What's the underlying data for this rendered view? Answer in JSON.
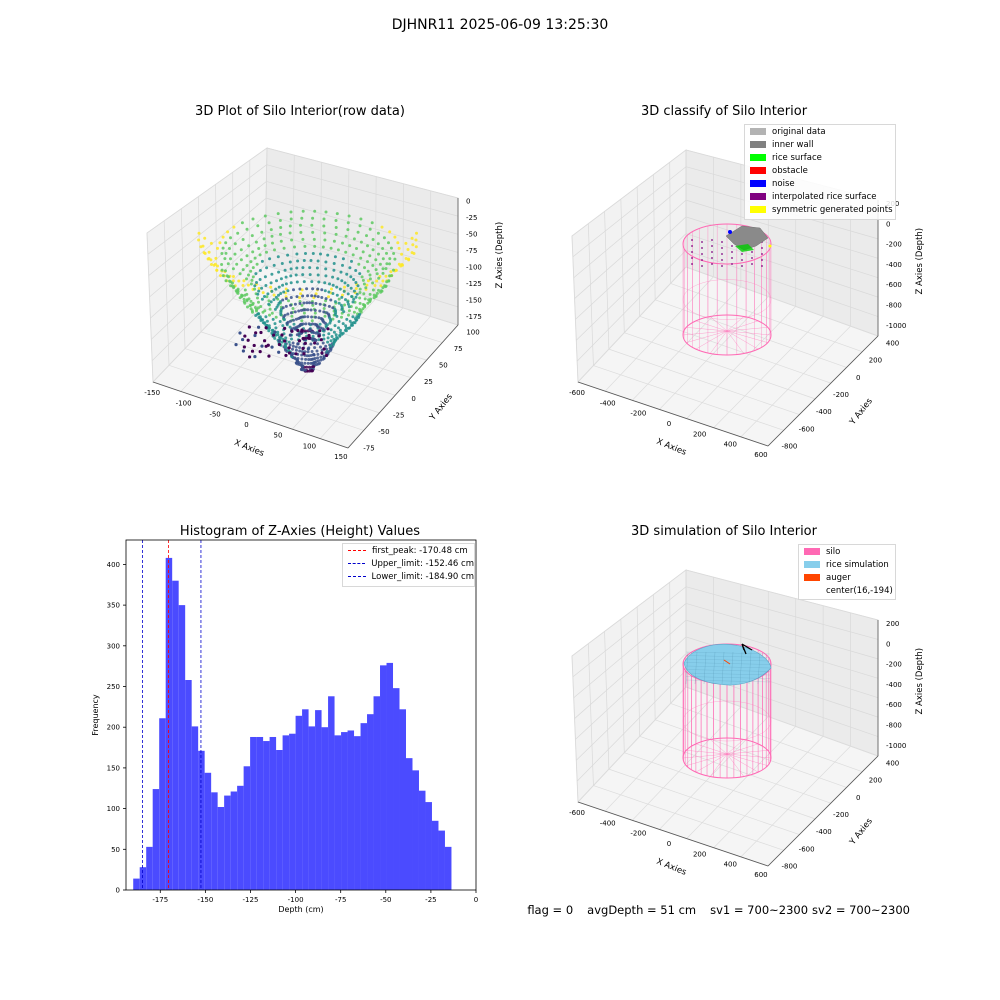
{
  "window": {
    "title": "DJHNR11 2025-06-09 13:25:30"
  },
  "colors": {
    "viridis": [
      "#440154",
      "#3b528b",
      "#21918c",
      "#5ec962",
      "#fde725"
    ],
    "silo": "#ff69b4",
    "rice_sim": "#87ceeb",
    "auger": "#ff4500",
    "hist_bar": "#4b4bff",
    "peak_line": "#ff0000",
    "limit_line": "#0000cc"
  },
  "panels": {
    "raw": {
      "title": "3D Plot of Silo Interior(row data)",
      "xlabel": "X Axies",
      "ylabel": "Y Axies",
      "zlabel": "Z Axies (Depth)",
      "xticks": [
        "-150",
        "-100",
        "-50",
        "0",
        "50",
        "100",
        "150"
      ],
      "yticks": [
        "-75",
        "-50",
        "-25",
        "0",
        "25",
        "50",
        "75",
        "100"
      ],
      "zticks": [
        "0",
        "-25",
        "-50",
        "-75",
        "-100",
        "-125",
        "-150",
        "-175"
      ],
      "colormap": "viridis"
    },
    "classify": {
      "title": "3D classify of Silo Interior",
      "xlabel": "X Axies",
      "ylabel": "Y Axies",
      "zlabel": "Z Axies (Depth)",
      "xticks": [
        "-600",
        "-400",
        "-200",
        "0",
        "200",
        "400",
        "600"
      ],
      "yticks": [
        "-800",
        "-600",
        "-400",
        "-200",
        "0",
        "200",
        "400"
      ],
      "zticks": [
        "200",
        "0",
        "-200",
        "-400",
        "-600",
        "-800",
        "-1000"
      ],
      "legend": [
        {
          "label": "original data",
          "color": "#b3b3b3"
        },
        {
          "label": "inner wall",
          "color": "#808080"
        },
        {
          "label": "rice surface",
          "color": "#00ff00"
        },
        {
          "label": "obstacle",
          "color": "#ff0000"
        },
        {
          "label": "noise",
          "color": "#0000ff"
        },
        {
          "label": "interpolated rice surface",
          "color": "#800080"
        },
        {
          "label": "symmetric generated points",
          "color": "#ffff00"
        }
      ]
    },
    "histogram": {
      "title": "Histogram of Z-Axies (Height) Values",
      "xlabel": "Depth (cm)",
      "ylabel": "Frequency",
      "legend": [
        {
          "label": "first_peak: -170.48 cm",
          "color": "#ff0000"
        },
        {
          "label": "Upper_limit: -152.46 cm",
          "color": "#0000cc"
        },
        {
          "label": "Lower_limit: -184.90 cm",
          "color": "#0000cc"
        }
      ]
    },
    "simulation": {
      "title": "3D simulation of Silo Interior",
      "xlabel": "X Axies",
      "ylabel": "Y Axies",
      "zlabel": "Z Axies (Depth)",
      "xticks": [
        "-600",
        "-400",
        "-200",
        "0",
        "200",
        "400",
        "600"
      ],
      "yticks": [
        "-800",
        "-600",
        "-400",
        "-200",
        "0",
        "200",
        "400"
      ],
      "zticks": [
        "200",
        "0",
        "-200",
        "-400",
        "-600",
        "-800",
        "-1000"
      ],
      "legend": [
        {
          "label": "silo",
          "color": "#ff69b4"
        },
        {
          "label": "rice simulation",
          "color": "#87ceeb"
        },
        {
          "label": "auger",
          "color": "#ff4500"
        },
        {
          "label": "center(16,-194)",
          "color": ""
        }
      ]
    }
  },
  "status": {
    "flag": "flag = 0",
    "avg_depth": "avgDepth = 51 cm",
    "sv1": "sv1 = 700~2300",
    "sv2": "sv2 = 700~2300"
  },
  "chart_data": [
    {
      "type": "scatter",
      "title": "3D Plot of Silo Interior(row data)",
      "xlabel": "X Axies",
      "ylabel": "Y Axies",
      "zlabel": "Z Axies (Depth)",
      "xlim": [
        -150,
        150
      ],
      "ylim": [
        -75,
        110
      ],
      "zlim": [
        -190,
        0
      ],
      "grid": true
    },
    {
      "type": "scatter",
      "title": "3D classify of Silo Interior",
      "xlabel": "X Axies",
      "ylabel": "Y Axies",
      "zlabel": "Z Axies (Depth)",
      "xlim": [
        -600,
        600
      ],
      "ylim": [
        -800,
        400
      ],
      "zlim": [
        -1000,
        200
      ],
      "grid": true,
      "legend_position": "top-right"
    },
    {
      "type": "bar",
      "title": "Histogram of Z-Axies (Height) Values",
      "xlabel": "Depth (cm)",
      "ylabel": "Frequency",
      "xlim": [
        -194,
        0
      ],
      "ylim": [
        0,
        430
      ],
      "bin_start": -190.0,
      "bin_width": 3.6,
      "values": [
        14,
        28,
        53,
        124,
        211,
        408,
        380,
        350,
        258,
        201,
        171,
        144,
        120,
        102,
        116,
        121,
        128,
        152,
        188,
        188,
        183,
        188,
        172,
        190,
        192,
        214,
        222,
        201,
        221,
        200,
        238,
        190,
        194,
        196,
        189,
        205,
        216,
        238,
        276,
        279,
        248,
        222,
        162,
        147,
        122,
        108,
        85,
        73,
        53
      ],
      "xticks": [
        -175,
        -150,
        -125,
        -100,
        -75,
        -50,
        -25,
        0
      ],
      "yticks": [
        0,
        50,
        100,
        150,
        200,
        250,
        300,
        350,
        400
      ],
      "vlines": [
        {
          "label": "first_peak: -170.48 cm",
          "x": -170.48,
          "style": "dashed",
          "color": "#ff0000"
        },
        {
          "label": "Upper_limit: -152.46 cm",
          "x": -152.46,
          "style": "dashed",
          "color": "#0000cc"
        },
        {
          "label": "Lower_limit: -184.90 cm",
          "x": -184.9,
          "style": "dashed",
          "color": "#0000cc"
        }
      ],
      "legend_position": "top-right"
    },
    {
      "type": "scatter",
      "title": "3D simulation of Silo Interior",
      "xlabel": "X Axies",
      "ylabel": "Y Axies",
      "zlabel": "Z Axies (Depth)",
      "xlim": [
        -600,
        600
      ],
      "ylim": [
        -800,
        400
      ],
      "zlim": [
        -1000,
        200
      ],
      "grid": true,
      "legend_position": "top-right",
      "center": [
        16,
        -194
      ]
    }
  ]
}
